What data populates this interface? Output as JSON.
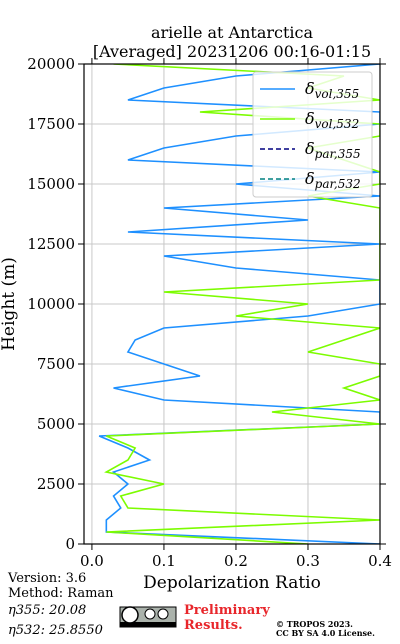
{
  "chart_data": {
    "type": "line",
    "title": [
      "arielle at Antarctica",
      "[Averaged] 20231206 00:16-01:15"
    ],
    "x_label": "Depolarization Ratio",
    "y_label": "Height (m)",
    "heights": [
      0,
      500,
      1000,
      1500,
      2000,
      2500,
      3000,
      3500,
      4000,
      4500,
      5000,
      5500,
      6000,
      6500,
      7000,
      7500,
      8000,
      8500,
      9000,
      9500,
      10000,
      10500,
      11000,
      11500,
      12000,
      12500,
      13000,
      13500,
      14000,
      14500,
      15000,
      15500,
      16000,
      16500,
      17000,
      17500,
      18000,
      18500,
      19000,
      19500,
      20000
    ],
    "series": [
      {
        "name": "δvol,355",
        "color": "#1e90ff",
        "linestyle": "solid",
        "values": [
          0.4,
          0.02,
          0.02,
          0.04,
          0.03,
          0.05,
          0.03,
          0.08,
          0.05,
          0.01,
          0.4,
          0.4,
          0.1,
          0.03,
          0.15,
          0.1,
          0.05,
          0.06,
          0.1,
          0.3,
          0.4,
          0.4,
          0.4,
          0.2,
          0.1,
          0.4,
          0.05,
          0.3,
          0.1,
          0.4,
          0.2,
          0.4,
          0.05,
          0.1,
          0.2,
          0.4,
          0.4,
          0.05,
          0.1,
          0.2,
          0.4
        ]
      },
      {
        "name": "δvol,532",
        "color": "#7cfc00",
        "linestyle": "solid",
        "values": [
          0.3,
          0.02,
          0.4,
          0.05,
          0.04,
          0.1,
          0.02,
          0.05,
          0.06,
          0.02,
          0.4,
          0.25,
          0.4,
          0.35,
          0.4,
          0.4,
          0.3,
          0.35,
          0.4,
          0.2,
          0.3,
          0.1,
          0.4,
          0.4,
          0.4,
          0.4,
          0.4,
          0.4,
          0.4,
          0.3,
          0.4,
          0.4,
          0.35,
          0.3,
          0.4,
          0.4,
          0.15,
          0.4,
          0.3,
          0.35,
          0.03
        ]
      },
      {
        "name": "δpar,355",
        "color": "#000080",
        "linestyle": "dashed",
        "values": [
          null,
          null,
          null,
          null,
          null,
          null,
          null,
          null,
          null,
          null,
          null,
          null,
          null,
          null,
          null,
          null,
          null,
          null,
          null,
          null,
          null,
          null,
          null,
          null,
          null,
          null,
          null,
          null,
          null,
          null,
          null,
          null,
          null,
          null,
          null,
          null,
          null,
          null,
          null,
          null,
          null
        ]
      },
      {
        "name": "δpar,532",
        "color": "#008080",
        "linestyle": "dashed",
        "values": [
          null,
          null,
          null,
          null,
          null,
          null,
          null,
          null,
          null,
          null,
          null,
          null,
          null,
          null,
          null,
          null,
          null,
          null,
          null,
          null,
          null,
          null,
          null,
          null,
          null,
          null,
          null,
          null,
          null,
          null,
          null,
          null,
          null,
          null,
          null,
          null,
          null,
          null,
          null,
          null,
          null
        ]
      }
    ],
    "xlim": [
      -0.011,
      0.4
    ],
    "xticks": [
      {
        "value": 0,
        "label": "0.0"
      },
      0.1,
      0.2,
      0.3,
      0.4
    ],
    "ylim": [
      0,
      20000
    ],
    "yticks": [
      0,
      2500,
      5000,
      7500,
      10000,
      12500,
      15000,
      17500,
      20000
    ],
    "grid": true,
    "legend": "upper right"
  },
  "footer": {
    "version": "Version: 3.6",
    "method": "Method: Raman",
    "eta355": "η355:  20.08",
    "eta532": "η532: 25.8550",
    "notice": [
      "Preliminary",
      "Results."
    ],
    "copyright": [
      "© TROPOS 2023.",
      "CC BY SA 4.0 License."
    ]
  }
}
